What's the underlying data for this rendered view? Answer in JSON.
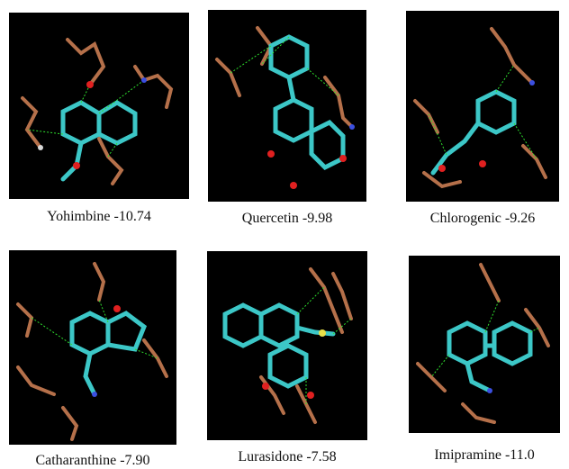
{
  "panels": [
    {
      "caption": "Yohimbine -10.74"
    },
    {
      "caption": "Quercetin -9.98"
    },
    {
      "caption": "Chlorogenic -9.26"
    },
    {
      "caption": "Catharanthine -7.90"
    },
    {
      "caption": "Lurasidone -7.58"
    },
    {
      "caption": "Imipramine -11.0"
    }
  ],
  "colors": {
    "ligand": "#3cc7c7",
    "residue": "#b5704a",
    "oxygen": "#e02020",
    "nitrogen": "#3b4fe0",
    "hydrogen": "#d8d8d8",
    "hbond": "#2ee02e",
    "sulfur": "#e8e04a"
  }
}
